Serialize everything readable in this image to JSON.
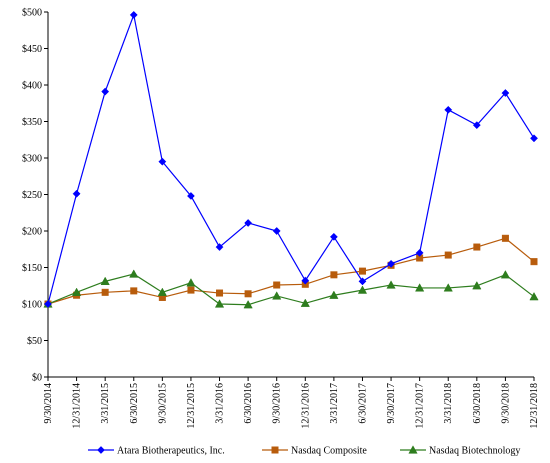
{
  "chart_data": {
    "type": "line",
    "title": "",
    "xlabel": "",
    "ylabel": "",
    "ylim": [
      0,
      500
    ],
    "yticks": [
      "$0",
      "$50",
      "$100",
      "$150",
      "$200",
      "$250",
      "$300",
      "$350",
      "$400",
      "$450",
      "$500"
    ],
    "ytick_values": [
      0,
      50,
      100,
      150,
      200,
      250,
      300,
      350,
      400,
      450,
      500
    ],
    "categories": [
      "9/30/2014",
      "12/31/2014",
      "3/31/2015",
      "6/30/2015",
      "9/30/2015",
      "12/31/2015",
      "3/31/2016",
      "6/30/2016",
      "9/30/2016",
      "12/31/2016",
      "3/31/2017",
      "6/30/2017",
      "9/30/2017",
      "12/31/2017",
      "3/31/2018",
      "6/30/2018",
      "9/30/2018",
      "12/31/2018"
    ],
    "grid": false,
    "legend_position": "bottom",
    "series": [
      {
        "name": "Atara Biotherapeutics, Inc.",
        "color": "#0000ff",
        "marker": "diamond",
        "values": [
          100,
          251,
          391,
          496,
          295,
          248,
          178,
          211,
          200,
          132,
          192,
          131,
          155,
          170,
          366,
          345,
          389,
          327
        ]
      },
      {
        "name": "Nasdaq Composite",
        "color": "#b85c0c",
        "marker": "square",
        "values": [
          100,
          112,
          116,
          118,
          109,
          119,
          115,
          114,
          126,
          127,
          140,
          145,
          153,
          163,
          167,
          178,
          190,
          158
        ]
      },
      {
        "name": "Nasdaq Biotechnology",
        "color": "#2e7d1e",
        "marker": "triangle",
        "values": [
          100,
          116,
          131,
          141,
          116,
          129,
          100,
          99,
          111,
          101,
          112,
          119,
          126,
          122,
          122,
          125,
          140,
          110
        ]
      }
    ]
  }
}
